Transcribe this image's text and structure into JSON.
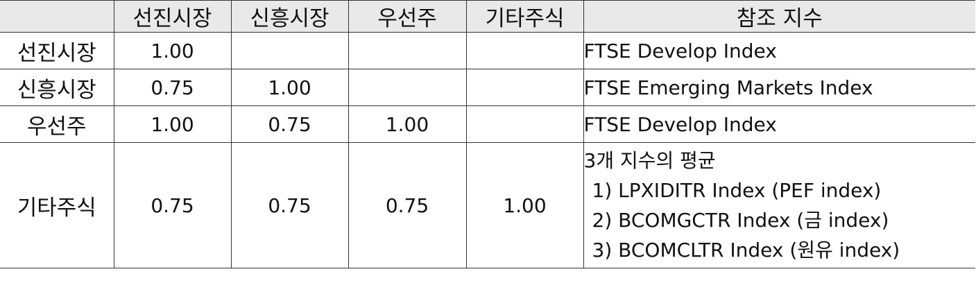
{
  "table": {
    "headers": [
      "",
      "선진시장",
      "신흥시장",
      "우선주",
      "기타주식",
      "참조 지수"
    ],
    "rows": [
      {
        "label": "선진시장",
        "values": [
          "1.00",
          "",
          "",
          ""
        ],
        "reference": [
          "FTSE Develop Index"
        ]
      },
      {
        "label": "신흥시장",
        "values": [
          "0.75",
          "1.00",
          "",
          ""
        ],
        "reference": [
          "FTSE Emerging Markets Index"
        ]
      },
      {
        "label": "우선주",
        "values": [
          "1.00",
          "0.75",
          "1.00",
          ""
        ],
        "reference": [
          "FTSE Develop Index"
        ]
      },
      {
        "label": "기타주식",
        "values": [
          "0.75",
          "0.75",
          "0.75",
          "1.00"
        ],
        "reference": [
          "3개 지수의 평균",
          "1) LPXIDITR Index (PEF index)",
          "2) BCOMGCTR Index (금 index)",
          "3) BCOMCLTR Index (원유 index)"
        ]
      }
    ]
  },
  "colors": {
    "header_background": "#e9e9e9",
    "border": "#333333"
  }
}
